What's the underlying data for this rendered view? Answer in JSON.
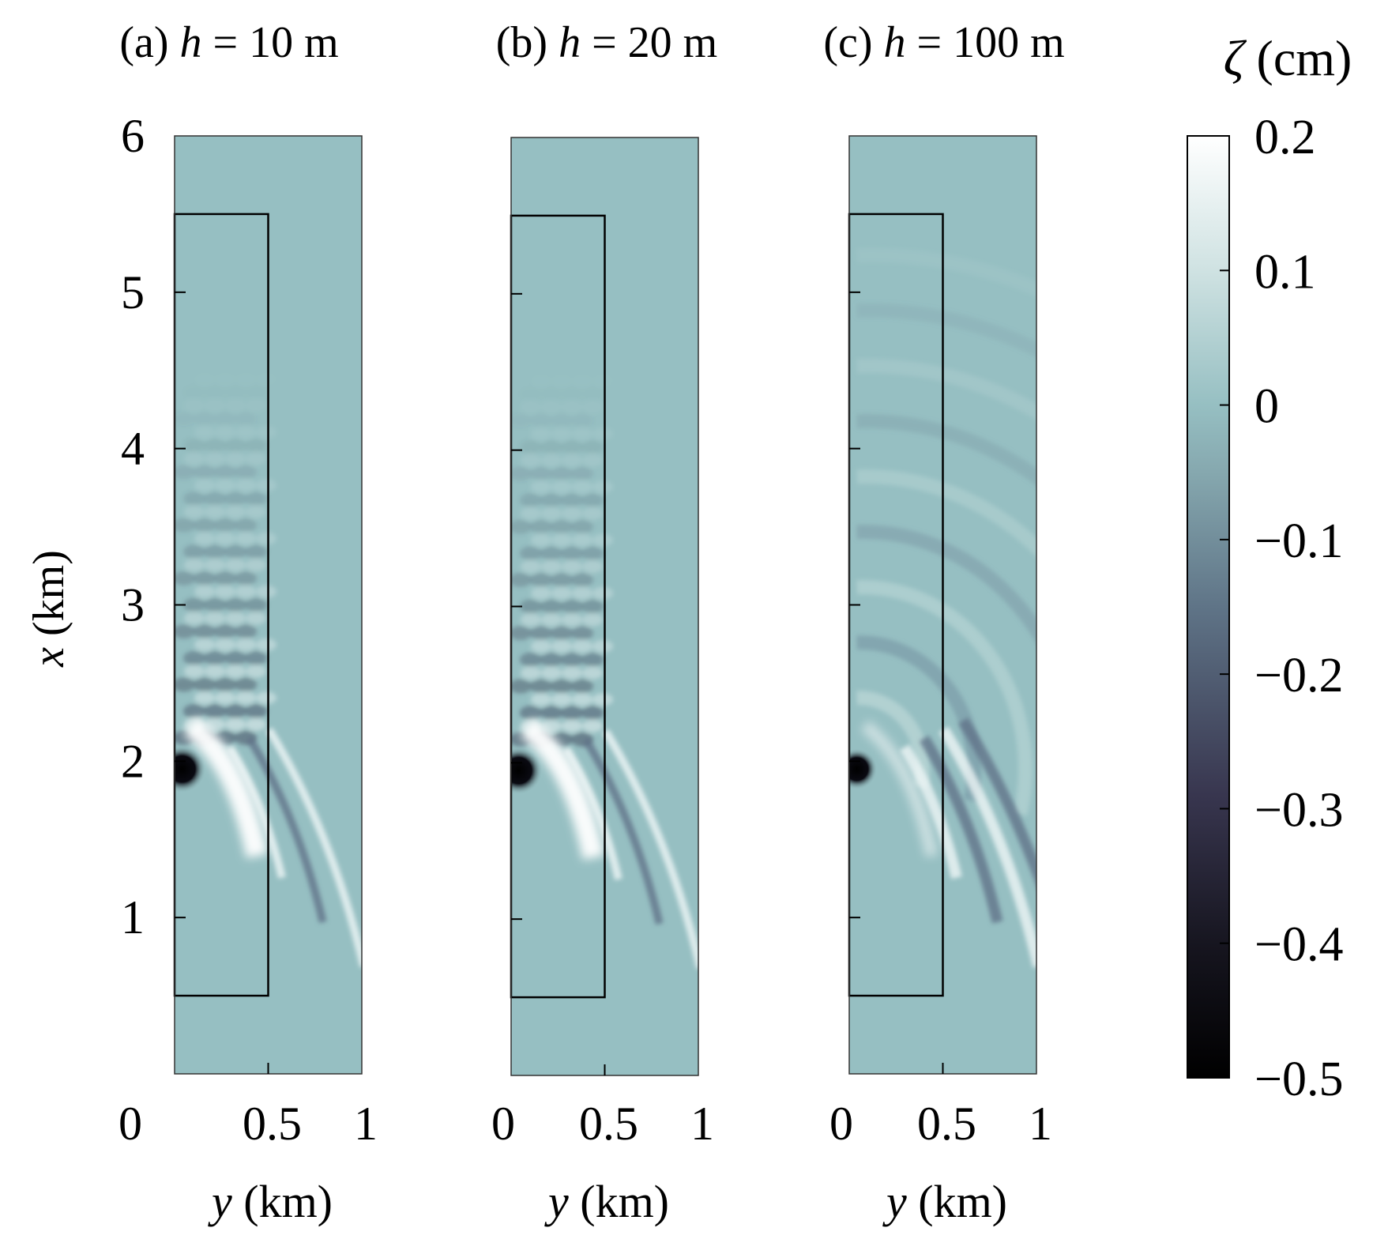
{
  "chart_data": [
    {
      "type": "heatmap",
      "panel_label": "(a)",
      "title": "(a) h = 10 m",
      "title_parts": {
        "prefix": "(a) ",
        "var": "h",
        "suffix": " = 10 m"
      },
      "h_m": 10,
      "xlabel": "y (km)",
      "ylabel": "x (km)",
      "xlim": [
        0,
        1
      ],
      "ylim": [
        0,
        6
      ],
      "xticks": [
        "0",
        "0.5",
        "1"
      ],
      "yticks": [
        "1",
        "2",
        "3",
        "4",
        "5",
        "6"
      ],
      "region_box": {
        "y": [
          0,
          0.5
        ],
        "x": [
          0.5,
          5.5
        ]
      },
      "source": {
        "y": 0.04,
        "x": 1.95,
        "zeta_min": -0.5
      },
      "pattern": "checkerboard interference, strongest near x ≈ 2 km",
      "zeta_range": [
        -0.5,
        0.2
      ]
    },
    {
      "type": "heatmap",
      "panel_label": "(b)",
      "title": "(b) h = 20 m",
      "title_parts": {
        "prefix": "(b) ",
        "var": "h",
        "suffix": " = 20 m"
      },
      "h_m": 20,
      "xlabel": "y (km)",
      "ylabel": "x (km)",
      "xlim": [
        0,
        1
      ],
      "ylim": [
        0,
        6
      ],
      "xticks": [
        "0",
        "0.5",
        "1"
      ],
      "region_box": {
        "y": [
          0,
          0.5
        ],
        "x": [
          0.5,
          5.5
        ]
      },
      "source": {
        "y": 0.04,
        "x": 1.95,
        "zeta_min": -0.5
      },
      "pattern": "checkerboard interference with curved wave fronts",
      "zeta_range": [
        -0.5,
        0.2
      ]
    },
    {
      "type": "heatmap",
      "panel_label": "(c)",
      "title": "(c) h = 100 m",
      "title_parts": {
        "prefix": "(c) ",
        "var": "h",
        "suffix": " = 100 m"
      },
      "h_m": 100,
      "xlabel": "y (km)",
      "ylabel": "x (km)",
      "xlim": [
        0,
        1
      ],
      "ylim": [
        0,
        6
      ],
      "xticks": [
        "0",
        "0.5",
        "1"
      ],
      "region_box": {
        "y": [
          0,
          0.5
        ],
        "x": [
          0.5,
          5.5
        ]
      },
      "source": {
        "y": 0.04,
        "x": 1.95,
        "zeta_min": -0.4
      },
      "pattern": "smooth curved wave fronts",
      "zeta_range": [
        -0.5,
        0.2
      ]
    }
  ],
  "colorbar": {
    "title": "ζ (cm)",
    "title_parts": {
      "var": "ζ",
      "unit": " (cm)"
    },
    "range": [
      -0.5,
      0.2
    ],
    "ticks": [
      "0.2",
      "0.1",
      "0",
      "−0.1",
      "−0.2",
      "−0.3",
      "−0.4",
      "−0.5"
    ],
    "colors": {
      "top": "#ffffff",
      "zero": "#96bfc2",
      "mid_neg": "#5b6f85",
      "deep_neg": "#2f2a45",
      "bottom": "#000000"
    }
  },
  "colors": {
    "background_field": "#96bfc2",
    "frame": "#000000"
  }
}
